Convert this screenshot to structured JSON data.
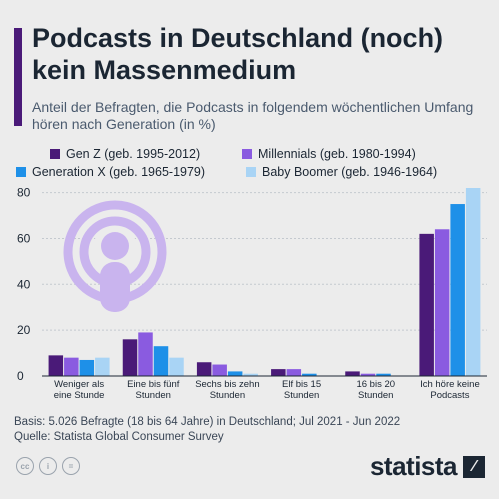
{
  "header": {
    "title": "Podcasts in Deutschland (noch) kein Massenmedium",
    "subtitle": "Anteil der Befragten, die Podcasts in folgendem wöchentlichen Umfang hören nach Generation (in %)"
  },
  "legend": [
    {
      "label": "Gen Z (geb. 1995-2012)",
      "color": "#4a1a78"
    },
    {
      "label": "Millennials (geb. 1980-1994)",
      "color": "#8a5be0"
    },
    {
      "label": "Generation X (geb. 1965-1979)",
      "color": "#1e90e8"
    },
    {
      "label": "Baby Boomer (geb. 1946-1964)",
      "color": "#a9d4f5"
    }
  ],
  "chart_data": {
    "type": "bar",
    "categories": [
      [
        "Weniger als",
        "eine Stunde"
      ],
      [
        "Eine bis fünf",
        "Stunden"
      ],
      [
        "Sechs bis zehn",
        "Stunden"
      ],
      [
        "Elf bis 15",
        "Stunden"
      ],
      [
        "16 bis 20",
        "Stunden"
      ],
      [
        "Ich höre keine",
        "Podcasts"
      ]
    ],
    "series": [
      {
        "name": "Gen Z (geb. 1995-2012)",
        "color": "#4a1a78",
        "values": [
          9,
          16,
          6,
          3,
          2,
          62
        ]
      },
      {
        "name": "Millennials (geb. 1980-1994)",
        "color": "#8a5be0",
        "values": [
          8,
          19,
          5,
          3,
          1,
          64
        ]
      },
      {
        "name": "Generation X (geb. 1965-1979)",
        "color": "#1e90e8",
        "values": [
          7,
          13,
          2,
          1,
          1,
          75
        ]
      },
      {
        "name": "Baby Boomer (geb. 1946-1964)",
        "color": "#a9d4f5",
        "values": [
          8,
          8,
          1,
          0,
          0,
          82
        ]
      }
    ],
    "yticks": [
      0,
      20,
      40,
      60,
      80
    ],
    "ylim": [
      0,
      82
    ],
    "grid": true,
    "legend_position": "top"
  },
  "footer": {
    "basis": "Basis: 5.026 Befragte (18 bis 64 Jahre) in Deutschland; Jul 2021 - Jun 2022",
    "source": "Quelle: Statista Global Consumer Survey",
    "brand": "statista"
  },
  "icons": [
    "podcast-icon",
    "creative-commons-icon",
    "attribution-icon",
    "no-derivatives-icon",
    "statista-logo-icon"
  ]
}
